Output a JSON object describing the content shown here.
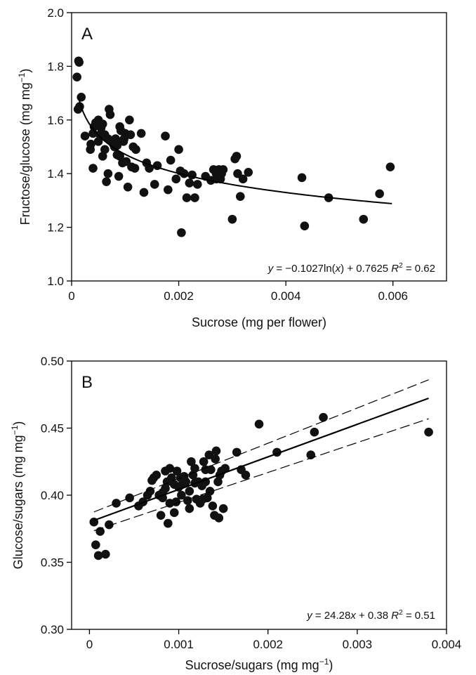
{
  "chart_data": [
    {
      "type": "scatter",
      "panel": "A",
      "xlabel": "Sucrose (mg per flower)",
      "ylabel_main": "Fructose/glucose (mg mg",
      "ylabel_sup": "−1",
      "ylabel_end": ")",
      "xlim": [
        0,
        0.007
      ],
      "ylim": [
        1.0,
        2.0
      ],
      "xticks": [
        0,
        0.002,
        0.004,
        0.006
      ],
      "xtick_labels": [
        "0",
        "0.002",
        "0.004",
        "0.006"
      ],
      "yticks": [
        1.0,
        1.2,
        1.4,
        1.6,
        1.8,
        2.0
      ],
      "ytick_labels": [
        "1.0",
        "1.2",
        "1.4",
        "1.6",
        "1.8",
        "2.0"
      ],
      "equation": {
        "prefix": "y",
        "mid": " = −0.1027ln(",
        "var": "x",
        "suffix": ") + 0.7625 ",
        "r": "R",
        "r_sup": "2",
        "r_end": " = 0.62"
      },
      "fit": {
        "kind": "log",
        "a": -0.1027,
        "b": 0.7625,
        "x_range": [
          0.00012,
          0.00598
        ]
      },
      "points": [
        [
          0.0001,
          1.76
        ],
        [
          0.00013,
          1.82
        ],
        [
          0.00014,
          1.815
        ],
        [
          0.00012,
          1.64
        ],
        [
          0.00015,
          1.65
        ],
        [
          0.00018,
          1.685
        ],
        [
          0.00025,
          1.54
        ],
        [
          0.00035,
          1.49
        ],
        [
          0.00036,
          1.51
        ],
        [
          0.0004,
          1.55
        ],
        [
          0.00042,
          1.575
        ],
        [
          0.00045,
          1.59
        ],
        [
          0.0005,
          1.52
        ],
        [
          0.00053,
          1.545
        ],
        [
          0.00055,
          1.57
        ],
        [
          0.00058,
          1.585
        ],
        [
          0.00062,
          1.49
        ],
        [
          0.00065,
          1.37
        ],
        [
          0.00068,
          1.4
        ],
        [
          0.0007,
          1.64
        ],
        [
          0.00072,
          1.62
        ],
        [
          0.00075,
          1.52
        ],
        [
          0.00078,
          1.51
        ],
        [
          0.0008,
          1.5
        ],
        [
          0.00082,
          1.53
        ],
        [
          0.00085,
          1.505
        ],
        [
          0.00088,
          1.39
        ],
        [
          0.0009,
          1.575
        ],
        [
          0.00092,
          1.56
        ],
        [
          0.00095,
          1.44
        ],
        [
          0.00097,
          1.52
        ],
        [
          0.001,
          1.55
        ],
        [
          0.00102,
          1.445
        ],
        [
          0.00105,
          1.35
        ],
        [
          0.00108,
          1.6
        ],
        [
          0.0011,
          1.545
        ],
        [
          0.00112,
          1.425
        ],
        [
          0.00115,
          1.5
        ],
        [
          0.00118,
          1.42
        ],
        [
          0.0004,
          1.42
        ],
        [
          0.00058,
          1.465
        ],
        [
          0.0005,
          1.6
        ],
        [
          0.00062,
          1.545
        ],
        [
          0.00085,
          1.47
        ],
        [
          0.0013,
          1.55
        ],
        [
          0.00135,
          1.33
        ],
        [
          0.0014,
          1.44
        ],
        [
          0.00145,
          1.42
        ],
        [
          0.00155,
          1.36
        ],
        [
          0.0016,
          1.43
        ],
        [
          0.00175,
          1.54
        ],
        [
          0.0018,
          1.34
        ],
        [
          0.00185,
          1.45
        ],
        [
          0.00195,
          1.38
        ],
        [
          0.002,
          1.49
        ],
        [
          0.00203,
          1.41
        ],
        [
          0.00205,
          1.18
        ],
        [
          0.0021,
          1.4
        ],
        [
          0.00215,
          1.31
        ],
        [
          0.0022,
          1.365
        ],
        [
          0.00225,
          1.395
        ],
        [
          0.0023,
          1.31
        ],
        [
          0.00235,
          1.36
        ],
        [
          0.0025,
          1.39
        ],
        [
          0.0026,
          1.375
        ],
        [
          0.00265,
          1.415
        ],
        [
          0.0027,
          1.4
        ],
        [
          0.0027,
          1.38
        ],
        [
          0.00275,
          1.415
        ],
        [
          0.00278,
          1.38
        ],
        [
          0.0028,
          1.4
        ],
        [
          0.00283,
          1.415
        ],
        [
          0.003,
          1.23
        ],
        [
          0.00305,
          1.455
        ],
        [
          0.00308,
          1.465
        ],
        [
          0.0031,
          1.4
        ],
        [
          0.00315,
          1.315
        ],
        [
          0.0032,
          1.38
        ],
        [
          0.0033,
          1.405
        ],
        [
          0.0043,
          1.385
        ],
        [
          0.00435,
          1.205
        ],
        [
          0.0048,
          1.31
        ],
        [
          0.00545,
          1.23
        ],
        [
          0.00575,
          1.325
        ],
        [
          0.00595,
          1.425
        ],
        [
          0.00085,
          1.52
        ],
        [
          0.00068,
          1.53
        ],
        [
          0.0009,
          1.465
        ],
        [
          0.0012,
          1.49
        ],
        [
          0.00098,
          1.53
        ]
      ]
    },
    {
      "type": "scatter",
      "panel": "B",
      "xlabel_main": "Sucrose/sugars (mg mg",
      "xlabel_sup": "−1",
      "xlabel_end": ")",
      "ylabel_main": "Glucose/sugars (mg mg",
      "ylabel_sup": "−1",
      "ylabel_end": ")",
      "xlim": [
        -0.0002,
        0.004
      ],
      "ylim": [
        0.3,
        0.5
      ],
      "xticks": [
        0,
        0.001,
        0.002,
        0.003,
        0.004
      ],
      "xtick_labels": [
        "0",
        "0.001",
        "0.002",
        "0.003",
        "0.004"
      ],
      "yticks": [
        0.3,
        0.35,
        0.4,
        0.45,
        0.5
      ],
      "ytick_labels": [
        "0.30",
        "0.35",
        "0.40",
        "0.45",
        "0.50"
      ],
      "equation": {
        "prefix": "y",
        "mid": " = 24.28",
        "var": "x",
        "suffix": " + 0.38 ",
        "r": "R",
        "r_sup": "2",
        "r_end": " = 0.51"
      },
      "fit": {
        "kind": "linear",
        "slope": 24.28,
        "intercept": 0.38,
        "x_range": [
          5e-05,
          0.0038
        ]
      },
      "ci_upper": [
        [
          5e-05,
          0.3875
        ],
        [
          0.0038,
          0.486
        ]
      ],
      "ci_lower": [
        [
          5e-05,
          0.3735
        ],
        [
          0.0038,
          0.457
        ]
      ],
      "points": [
        [
          5e-05,
          0.38
        ],
        [
          7e-05,
          0.363
        ],
        [
          0.0001,
          0.355
        ],
        [
          0.00012,
          0.373
        ],
        [
          0.00018,
          0.356
        ],
        [
          0.00022,
          0.378
        ],
        [
          0.0003,
          0.394
        ],
        [
          0.00045,
          0.398
        ],
        [
          0.00055,
          0.392
        ],
        [
          0.0006,
          0.395
        ],
        [
          0.00065,
          0.4
        ],
        [
          0.00068,
          0.403
        ],
        [
          0.0007,
          0.411
        ],
        [
          0.00072,
          0.413
        ],
        [
          0.00075,
          0.415
        ],
        [
          0.00078,
          0.4
        ],
        [
          0.0008,
          0.385
        ],
        [
          0.00082,
          0.398
        ],
        [
          0.00085,
          0.405
        ],
        [
          0.00087,
          0.41
        ],
        [
          0.0009,
          0.42
        ],
        [
          0.00092,
          0.413
        ],
        [
          0.00088,
          0.379
        ],
        [
          0.00095,
          0.408
        ],
        [
          0.00098,
          0.418
        ],
        [
          0.001,
          0.406
        ],
        [
          0.00102,
          0.413
        ],
        [
          0.00104,
          0.408
        ],
        [
          0.00106,
          0.414
        ],
        [
          0.00108,
          0.41
        ],
        [
          0.0011,
          0.396
        ],
        [
          0.00112,
          0.39
        ],
        [
          0.00114,
          0.425
        ],
        [
          0.00116,
          0.415
        ],
        [
          0.00118,
          0.42
        ],
        [
          0.0012,
          0.397
        ],
        [
          0.00122,
          0.41
        ],
        [
          0.00124,
          0.394
        ],
        [
          0.00126,
          0.407
        ],
        [
          0.00128,
          0.425
        ],
        [
          0.0013,
          0.419
        ],
        [
          0.00132,
          0.398
        ],
        [
          0.00134,
          0.43
        ],
        [
          0.00136,
          0.419
        ],
        [
          0.00138,
          0.392
        ],
        [
          0.0014,
          0.385
        ],
        [
          0.00142,
          0.433
        ],
        [
          0.00144,
          0.41
        ],
        [
          0.00146,
          0.415
        ],
        [
          0.00148,
          0.418
        ],
        [
          0.0015,
          0.39
        ],
        [
          0.00152,
          0.42
        ],
        [
          0.0009,
          0.394
        ],
        [
          0.00095,
          0.387
        ],
        [
          0.00145,
          0.383
        ],
        [
          0.00165,
          0.432
        ],
        [
          0.0017,
          0.419
        ],
        [
          0.00175,
          0.415
        ],
        [
          0.0019,
          0.453
        ],
        [
          0.0021,
          0.432
        ],
        [
          0.00248,
          0.43
        ],
        [
          0.00252,
          0.447
        ],
        [
          0.00262,
          0.458
        ],
        [
          0.0038,
          0.447
        ],
        [
          0.0013,
          0.41
        ],
        [
          0.00112,
          0.403
        ],
        [
          0.00103,
          0.4
        ],
        [
          0.00118,
          0.409
        ],
        [
          0.00127,
          0.397
        ],
        [
          0.00135,
          0.403
        ],
        [
          0.00097,
          0.395
        ],
        [
          0.00082,
          0.402
        ],
        [
          0.00141,
          0.427
        ],
        [
          0.00085,
          0.418
        ]
      ]
    }
  ]
}
